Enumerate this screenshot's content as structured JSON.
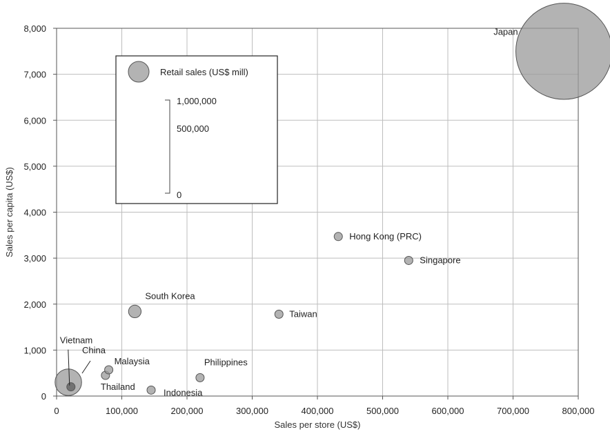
{
  "chart_data": {
    "type": "scatter",
    "subtype": "bubble",
    "xlabel": "Sales per store (US$)",
    "ylabel": "Sales per capita (US$)",
    "xlim": [
      0,
      800000
    ],
    "ylim": [
      0,
      8000
    ],
    "xticks": [
      0,
      100000,
      200000,
      300000,
      400000,
      500000,
      600000,
      700000,
      800000
    ],
    "xtick_labels": [
      "0",
      "100,000",
      "200,000",
      "300,000",
      "400,000",
      "500,000",
      "600,000",
      "700,000",
      "800,000"
    ],
    "yticks": [
      0,
      1000,
      2000,
      3000,
      4000,
      5000,
      6000,
      7000,
      8000
    ],
    "ytick_labels": [
      "0",
      "1,000",
      "2,000",
      "3,000",
      "4,000",
      "5,000",
      "6,000",
      "7,000",
      "8,000"
    ],
    "grid": true,
    "size_metric": "Retail sales (US$ mill)",
    "legend": {
      "title": "Retail sales (US$ mill)",
      "placement": "top-left",
      "scale_labels": [
        "1,000,000",
        "500,000",
        "0"
      ],
      "scale_values": [
        1000000,
        500000,
        0
      ]
    },
    "colors": {
      "bubble_fill": "#9a9a9a",
      "bubble_stroke": "#555555",
      "highlight": "#666666"
    },
    "points": [
      {
        "label": "Japan",
        "x": 778000,
        "y": 7500,
        "size": 1050000
      },
      {
        "label": "Hong Kong (PRC)",
        "x": 432000,
        "y": 3470,
        "size": 4500
      },
      {
        "label": "Singapore",
        "x": 540000,
        "y": 2950,
        "size": 2000
      },
      {
        "label": "South Korea",
        "x": 120000,
        "y": 1840,
        "size": 18000
      },
      {
        "label": "Taiwan",
        "x": 341000,
        "y": 1780,
        "size": 7500
      },
      {
        "label": "Philippines",
        "x": 220000,
        "y": 400,
        "size": 5000
      },
      {
        "label": "Indonesia",
        "x": 145000,
        "y": 130,
        "size": 5500
      },
      {
        "label": "Thailand",
        "x": 75000,
        "y": 450,
        "size": 5000
      },
      {
        "label": "Malaysia",
        "x": 80000,
        "y": 570,
        "size": 2000
      },
      {
        "label": "China",
        "x": 18000,
        "y": 300,
        "size": 80000
      },
      {
        "label": "Vietnam",
        "x": 22000,
        "y": 200,
        "size": 3000
      }
    ]
  }
}
